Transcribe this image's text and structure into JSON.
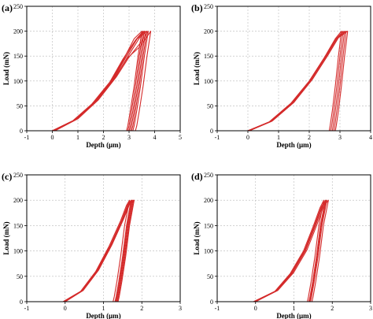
{
  "chart_data": [
    {
      "type": "line",
      "panel_label": "(a)",
      "xlabel": "Depth (μm)",
      "ylabel": "Load (mN)",
      "xlim": [
        -1,
        5
      ],
      "ylim": [
        0,
        250
      ],
      "xticks": [
        -1,
        0,
        1,
        2,
        3,
        4,
        5
      ],
      "yticks": [
        0,
        50,
        100,
        150,
        200,
        250
      ],
      "grid": true,
      "line_color": "#d42a2a",
      "series": [
        {
          "x": [
            -1,
            0.0,
            0.8,
            1.6,
            2.3,
            2.8,
            3.2,
            3.5,
            3.5,
            3.35,
            3.2,
            3.05,
            2.95,
            2.9,
            5
          ],
          "y": [
            0,
            0,
            20,
            55,
            100,
            145,
            185,
            200,
            200,
            150,
            90,
            40,
            10,
            0,
            0
          ]
        },
        {
          "x": [
            -1,
            0.05,
            0.9,
            1.7,
            2.4,
            2.9,
            3.35,
            3.6,
            3.6,
            3.45,
            3.3,
            3.15,
            3.05,
            3.0,
            5
          ],
          "y": [
            0,
            0,
            22,
            60,
            105,
            150,
            188,
            200,
            200,
            150,
            90,
            40,
            10,
            0,
            0
          ]
        },
        {
          "x": [
            -1,
            0.1,
            1.0,
            1.8,
            2.5,
            3.0,
            3.5,
            3.75,
            3.75,
            3.6,
            3.45,
            3.3,
            3.2,
            3.15,
            5
          ],
          "y": [
            0,
            0,
            24,
            62,
            108,
            148,
            180,
            200,
            200,
            150,
            90,
            40,
            10,
            0,
            0
          ]
        },
        {
          "x": [
            -1,
            0.0,
            0.85,
            1.65,
            2.35,
            2.85,
            3.3,
            3.65,
            3.65,
            3.5,
            3.35,
            3.2,
            3.1,
            3.05,
            5
          ],
          "y": [
            0,
            0,
            21,
            58,
            103,
            146,
            184,
            200,
            200,
            150,
            90,
            40,
            10,
            0,
            0
          ]
        },
        {
          "x": [
            -1,
            0.05,
            0.95,
            1.75,
            2.45,
            2.95,
            3.4,
            3.7,
            3.7,
            3.55,
            3.4,
            3.25,
            3.15,
            3.1,
            5
          ],
          "y": [
            0,
            0,
            23,
            61,
            106,
            149,
            186,
            200,
            200,
            150,
            90,
            40,
            10,
            0,
            0
          ]
        },
        {
          "x": [
            -1,
            0.1,
            0.9,
            1.7,
            2.4,
            2.95,
            3.45,
            3.85,
            3.85,
            3.7,
            3.55,
            3.4,
            3.3,
            3.25,
            5
          ],
          "y": [
            0,
            0,
            22,
            59,
            104,
            147,
            170,
            200,
            200,
            150,
            90,
            40,
            10,
            0,
            0
          ]
        },
        {
          "x": [
            -1,
            0.0,
            0.8,
            1.55,
            2.25,
            2.75,
            3.25,
            3.55,
            3.55,
            3.4,
            3.25,
            3.1,
            3.0,
            2.95,
            5
          ],
          "y": [
            0,
            0,
            20,
            54,
            98,
            143,
            182,
            200,
            200,
            150,
            90,
            40,
            10,
            0,
            0
          ]
        }
      ]
    },
    {
      "type": "line",
      "panel_label": "(b)",
      "xlabel": "Depth (μm)",
      "ylabel": "Load (mN)",
      "xlim": [
        -1,
        4
      ],
      "ylim": [
        0,
        250
      ],
      "xticks": [
        -1,
        0,
        1,
        2,
        3,
        4
      ],
      "yticks": [
        0,
        50,
        100,
        150,
        200,
        250
      ],
      "grid": true,
      "line_color": "#d42a2a",
      "series": [
        {
          "x": [
            -1,
            0.0,
            0.7,
            1.4,
            2.0,
            2.5,
            2.85,
            3.05,
            3.05,
            2.95,
            2.85,
            2.75,
            2.68,
            2.65,
            4
          ],
          "y": [
            0,
            0,
            18,
            55,
            100,
            148,
            185,
            200,
            200,
            150,
            90,
            40,
            10,
            0,
            0
          ]
        },
        {
          "x": [
            -1,
            0.0,
            0.75,
            1.45,
            2.05,
            2.55,
            2.9,
            3.1,
            3.1,
            3.0,
            2.9,
            2.8,
            2.73,
            2.7,
            4
          ],
          "y": [
            0,
            0,
            19,
            56,
            102,
            150,
            186,
            200,
            200,
            150,
            90,
            40,
            10,
            0,
            0
          ]
        },
        {
          "x": [
            -1,
            0.05,
            0.8,
            1.5,
            2.1,
            2.6,
            2.95,
            3.15,
            3.15,
            3.05,
            2.95,
            2.85,
            2.78,
            2.75,
            4
          ],
          "y": [
            0,
            0,
            20,
            57,
            103,
            151,
            187,
            200,
            200,
            150,
            90,
            40,
            10,
            0,
            0
          ]
        },
        {
          "x": [
            -1,
            0.0,
            0.72,
            1.42,
            2.02,
            2.52,
            2.88,
            3.2,
            3.2,
            3.1,
            3.0,
            2.9,
            2.83,
            2.8,
            4
          ],
          "y": [
            0,
            0,
            18,
            55,
            101,
            149,
            185,
            200,
            200,
            150,
            90,
            40,
            10,
            0,
            0
          ]
        },
        {
          "x": [
            -1,
            0.05,
            0.78,
            1.48,
            2.08,
            2.58,
            2.93,
            3.25,
            3.25,
            3.15,
            3.05,
            2.95,
            2.88,
            2.85,
            4
          ],
          "y": [
            0,
            0,
            19,
            56,
            102,
            150,
            186,
            200,
            200,
            150,
            90,
            40,
            10,
            0,
            0
          ]
        }
      ]
    },
    {
      "type": "line",
      "panel_label": "(c)",
      "xlabel": "Depth (μm)",
      "ylabel": "Load (mN)",
      "xlim": [
        -1,
        3
      ],
      "ylim": [
        0,
        250
      ],
      "xticks": [
        -1,
        0,
        1,
        2,
        3
      ],
      "yticks": [
        0,
        50,
        100,
        150,
        200,
        250
      ],
      "grid": true,
      "line_color": "#d42a2a",
      "series": [
        {
          "x": [
            -1,
            -0.05,
            0.4,
            0.8,
            1.15,
            1.45,
            1.6,
            1.68,
            1.68,
            1.55,
            1.45,
            1.35,
            1.28,
            1.25,
            3
          ],
          "y": [
            0,
            0,
            20,
            60,
            110,
            160,
            190,
            200,
            200,
            150,
            90,
            40,
            10,
            0,
            0
          ]
        },
        {
          "x": [
            -1,
            -0.05,
            0.42,
            0.82,
            1.18,
            1.48,
            1.63,
            1.72,
            1.72,
            1.6,
            1.5,
            1.4,
            1.33,
            1.3,
            3
          ],
          "y": [
            0,
            0,
            21,
            61,
            111,
            161,
            191,
            200,
            200,
            150,
            90,
            40,
            10,
            0,
            0
          ]
        },
        {
          "x": [
            -1,
            0.0,
            0.45,
            0.85,
            1.2,
            1.5,
            1.66,
            1.76,
            1.76,
            1.64,
            1.54,
            1.44,
            1.37,
            1.34,
            3
          ],
          "y": [
            0,
            0,
            22,
            62,
            112,
            162,
            192,
            200,
            200,
            150,
            90,
            40,
            10,
            0,
            0
          ]
        },
        {
          "x": [
            -1,
            0.0,
            0.47,
            0.87,
            1.22,
            1.52,
            1.68,
            1.8,
            1.8,
            1.68,
            1.58,
            1.48,
            1.41,
            1.38,
            3
          ],
          "y": [
            0,
            0,
            22,
            62,
            112,
            162,
            192,
            200,
            200,
            150,
            90,
            40,
            10,
            0,
            0
          ]
        },
        {
          "x": [
            -1,
            -0.05,
            0.43,
            0.83,
            1.19,
            1.49,
            1.64,
            1.74,
            1.74,
            1.62,
            1.52,
            1.42,
            1.35,
            1.32,
            3
          ],
          "y": [
            0,
            0,
            21,
            61,
            111,
            161,
            191,
            200,
            200,
            150,
            90,
            40,
            10,
            0,
            0
          ]
        },
        {
          "x": [
            -1,
            0.0,
            0.46,
            0.86,
            1.21,
            1.51,
            1.67,
            1.78,
            1.78,
            1.66,
            1.56,
            1.46,
            1.39,
            1.36,
            3
          ],
          "y": [
            0,
            0,
            22,
            62,
            112,
            162,
            192,
            200,
            200,
            150,
            90,
            40,
            10,
            0,
            0
          ]
        }
      ]
    },
    {
      "type": "line",
      "panel_label": "(d)",
      "xlabel": "Depth (μm)",
      "ylabel": "Load (mN)",
      "xlim": [
        -1,
        3
      ],
      "ylim": [
        0,
        250
      ],
      "xticks": [
        -1,
        0,
        1,
        2,
        3
      ],
      "yticks": [
        0,
        50,
        100,
        150,
        200,
        250
      ],
      "grid": true,
      "line_color": "#d42a2a",
      "series": [
        {
          "x": [
            -1,
            -0.05,
            0.5,
            0.9,
            1.25,
            1.5,
            1.68,
            1.78,
            1.78,
            1.65,
            1.55,
            1.45,
            1.38,
            1.35,
            3
          ],
          "y": [
            0,
            0,
            20,
            55,
            100,
            148,
            185,
            200,
            200,
            150,
            90,
            40,
            10,
            0,
            0
          ]
        },
        {
          "x": [
            -1,
            -0.05,
            0.52,
            0.93,
            1.28,
            1.53,
            1.71,
            1.82,
            1.82,
            1.69,
            1.59,
            1.49,
            1.42,
            1.39,
            3
          ],
          "y": [
            0,
            0,
            21,
            56,
            101,
            149,
            186,
            200,
            200,
            150,
            90,
            40,
            10,
            0,
            0
          ]
        },
        {
          "x": [
            -1,
            0.0,
            0.55,
            0.96,
            1.31,
            1.56,
            1.74,
            1.86,
            1.86,
            1.73,
            1.63,
            1.53,
            1.46,
            1.43,
            3
          ],
          "y": [
            0,
            0,
            22,
            57,
            102,
            150,
            187,
            200,
            200,
            150,
            90,
            40,
            10,
            0,
            0
          ]
        },
        {
          "x": [
            -1,
            0.0,
            0.58,
            0.99,
            1.34,
            1.59,
            1.77,
            1.9,
            1.9,
            1.77,
            1.67,
            1.57,
            1.5,
            1.47,
            3
          ],
          "y": [
            0,
            0,
            22,
            57,
            102,
            150,
            187,
            200,
            200,
            150,
            90,
            40,
            10,
            0,
            0
          ]
        },
        {
          "x": [
            -1,
            -0.05,
            0.54,
            0.95,
            1.3,
            1.55,
            1.73,
            1.84,
            1.84,
            1.71,
            1.61,
            1.51,
            1.44,
            1.41,
            3
          ],
          "y": [
            0,
            0,
            21,
            56,
            101,
            149,
            186,
            200,
            200,
            150,
            90,
            40,
            10,
            0,
            0
          ]
        }
      ]
    }
  ]
}
